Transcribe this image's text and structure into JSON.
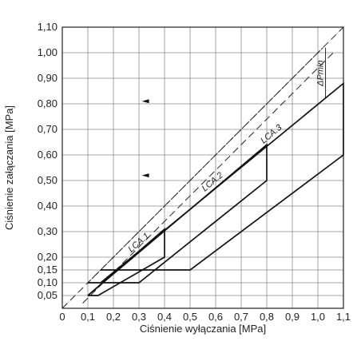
{
  "chart_data": {
    "type": "line",
    "xlabel": "Ciśnienie wyłączania [MPa]",
    "ylabel": "Ciśnienie załączania [MPa]",
    "xlim": [
      0,
      1.1
    ],
    "ylim": [
      0,
      1.1
    ],
    "xticks": [
      "0",
      "0,1",
      "0,2",
      "0,3",
      "0,4",
      "0,5",
      "0,6",
      "0,7",
      "0,8",
      "0,9",
      "1,0",
      "1,1"
    ],
    "xtick_values": [
      0,
      0.1,
      0.2,
      0.3,
      0.4,
      0.5,
      0.6,
      0.7,
      0.8,
      0.9,
      1.0,
      1.1
    ],
    "yticks": [
      "0,05",
      "0,10",
      "0,15",
      "0,20",
      "0,30",
      "0,40",
      "0,50",
      "0,60",
      "0,70",
      "0,80",
      "0,90",
      "1,00",
      "1,10"
    ],
    "ytick_values": [
      0.05,
      0.1,
      0.15,
      0.2,
      0.3,
      0.4,
      0.5,
      0.6,
      0.7,
      0.8,
      0.9,
      1.0,
      1.1
    ],
    "grid": true,
    "series": [
      {
        "name": "LCA.1",
        "x": [
          0.1,
          0.4,
          0.4,
          0.14,
          0.1
        ],
        "y": [
          0.05,
          0.31,
          0.2,
          0.05,
          0.05
        ]
      },
      {
        "name": "LCA.2",
        "x": [
          0.1,
          0.8,
          0.8,
          0.3,
          0.1
        ],
        "y": [
          0.05,
          0.64,
          0.5,
          0.1,
          0.1
        ]
      },
      {
        "name": "LCA.3",
        "x": [
          0.15,
          1.1,
          1.1,
          0.5,
          0.15
        ],
        "y": [
          0.1,
          0.88,
          0.6,
          0.15,
          0.15
        ]
      }
    ],
    "reference_lines": [
      {
        "style": "long-dash",
        "x": [
          0,
          1.1
        ],
        "y": [
          0,
          1.1
        ]
      },
      {
        "style": "short-dash",
        "x": [
          0.1,
          1.02
        ],
        "y": [
          0.1,
          1.02
        ]
      },
      {
        "style": "long-dash",
        "x": [
          0.08,
          1.06
        ],
        "y": [
          0.02,
          1.0
        ]
      }
    ],
    "annotations": [
      {
        "text": "ΔPmin",
        "x": 1.03,
        "y": 0.94
      }
    ],
    "arrows_y": [
      0.81,
      0.52
    ]
  }
}
